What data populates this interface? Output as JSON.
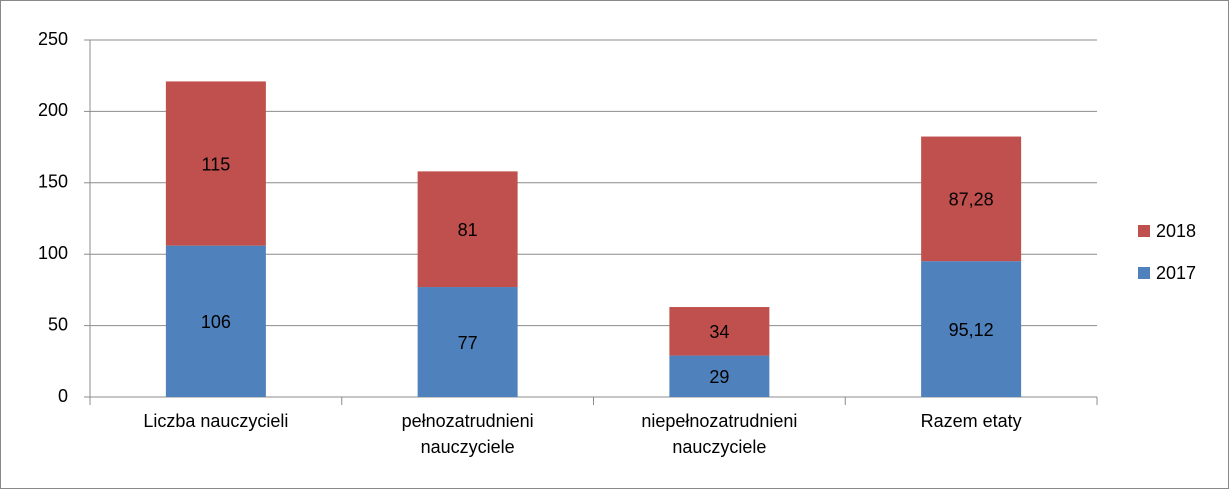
{
  "chart_data": {
    "type": "bar",
    "stacked": true,
    "categories": [
      "Liczba nauczycieli",
      "pełnozatrudnieni nauczyciele",
      "niepełnozatrudnieni nauczyciele",
      "Razem etaty"
    ],
    "series": [
      {
        "name": "2017",
        "color": "#4f81bd",
        "values": [
          106,
          77,
          29,
          95.12
        ],
        "value_labels": [
          "106",
          "77",
          "29",
          "95,12"
        ]
      },
      {
        "name": "2018",
        "color": "#c0504d",
        "values": [
          115,
          81,
          34,
          87.28
        ],
        "value_labels": [
          "115",
          "81",
          "34",
          "87,28"
        ]
      }
    ],
    "ylim": [
      0,
      250
    ],
    "yticks": [
      0,
      50,
      100,
      150,
      200,
      250
    ],
    "grid": true,
    "legend": "right"
  }
}
